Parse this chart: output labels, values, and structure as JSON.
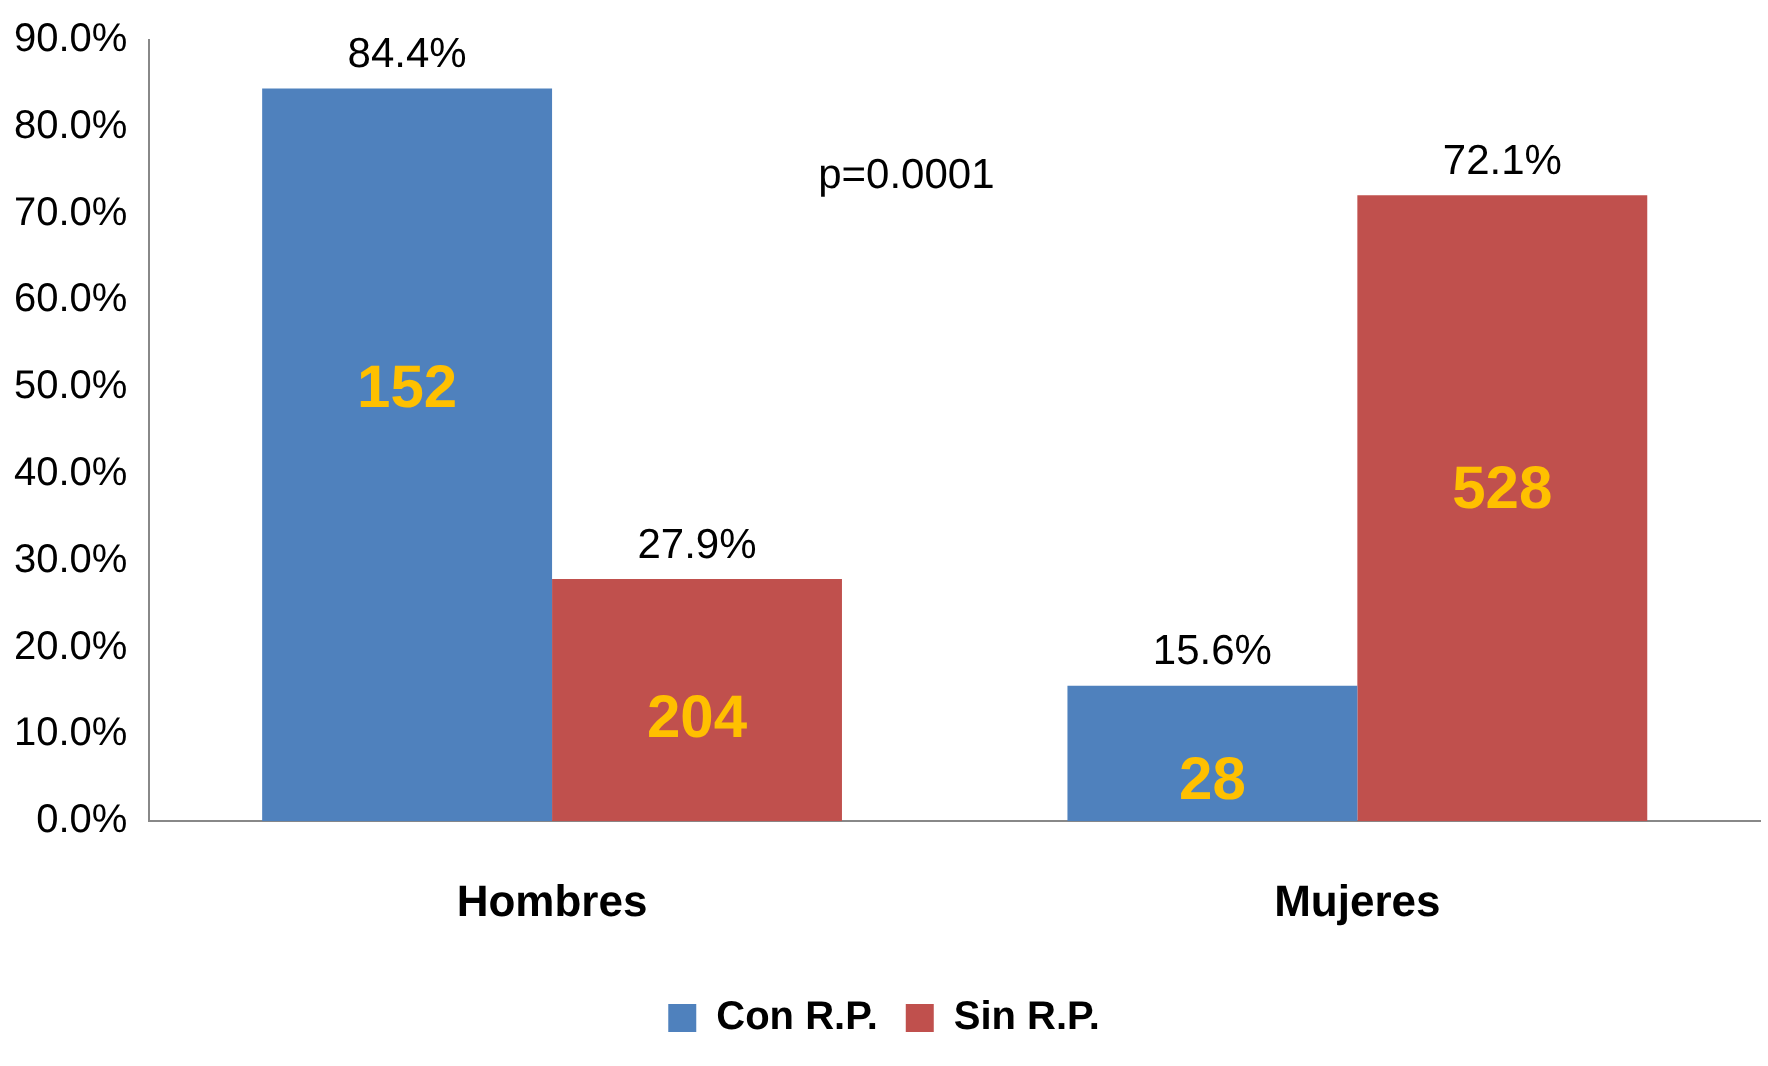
{
  "chart_data": {
    "type": "bar",
    "categories": [
      "Hombres",
      "Mujeres"
    ],
    "series": [
      {
        "name": "Con R.P.",
        "color": "#4f81bd",
        "values": [
          84.4,
          15.6
        ],
        "value_labels": [
          "84.4%",
          "15.6%"
        ]
      },
      {
        "name": "Sin R.P.",
        "color": "#c0504d",
        "values": [
          27.9,
          72.1
        ],
        "value_labels": [
          "27.9%",
          "72.1%"
        ]
      }
    ],
    "ylim": [
      0,
      90
    ],
    "yticks": [
      {
        "value": 0,
        "label": "0.0%"
      },
      {
        "value": 10,
        "label": "10.0%"
      },
      {
        "value": 20,
        "label": "20.0%"
      },
      {
        "value": 30,
        "label": "30.0%"
      },
      {
        "value": 40,
        "label": "40.0%"
      },
      {
        "value": 50,
        "label": "50.0%"
      },
      {
        "value": 60,
        "label": "60.0%"
      },
      {
        "value": 70,
        "label": "70.0%"
      },
      {
        "value": 80,
        "label": "80.0%"
      },
      {
        "value": 90,
        "label": "90.0%"
      }
    ],
    "grid": false,
    "legend": "bottom",
    "annotations": [
      {
        "text": "152",
        "x": "Hombres",
        "y": 49.6
      },
      {
        "text": "204",
        "x": "Hombres",
        "y": 11.6
      },
      {
        "text": "28",
        "x": "Mujeres",
        "y": 4.5
      },
      {
        "text": "528",
        "x": "Mujeres",
        "y": 38
      },
      "p=0.0001"
    ]
  }
}
